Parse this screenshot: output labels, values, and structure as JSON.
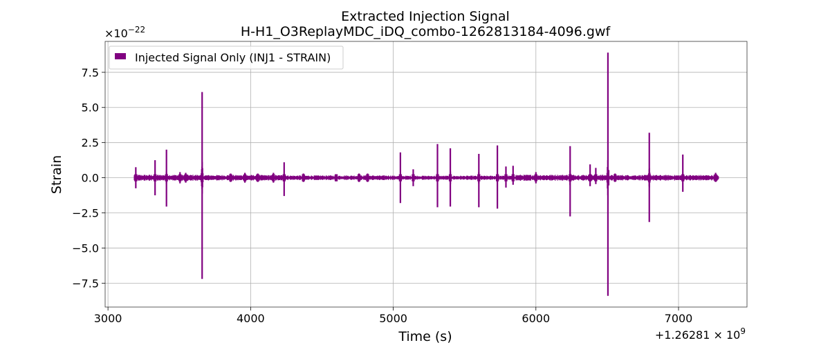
{
  "chart_data": {
    "type": "line",
    "title_line1": "Extracted Injection Signal",
    "title_line2": "H-H1_O3ReplayMDC_iDQ_combo-1262813184-4096.gwf",
    "xlabel": "Time (s)",
    "ylabel": "Strain",
    "x_offset_base": "+1.26281",
    "x_offset_exp": "9",
    "y_scale_base": "×10",
    "y_scale_exp": "−22",
    "xlim": [
      2980,
      7480
    ],
    "ylim": [
      -9.2,
      9.7
    ],
    "xticks": [
      3000,
      4000,
      5000,
      6000,
      7000
    ],
    "xtick_labels": [
      "3000",
      "4000",
      "5000",
      "6000",
      "7000"
    ],
    "yticks": [
      -7.5,
      -5.0,
      -2.5,
      0.0,
      2.5,
      5.0,
      7.5
    ],
    "ytick_labels": [
      "−7.5",
      "−5.0",
      "−2.5",
      "0.0",
      "2.5",
      "5.0",
      "7.5"
    ],
    "grid": true,
    "legend_position": "top-left",
    "series": [
      {
        "name": "Injected Signal Only (INJ1 - STRAIN)",
        "color": "#800080",
        "x_range": [
          3184,
          7280
        ],
        "baseline_amplitude": 0.18,
        "baseline_segments": [
          {
            "x": [
              3184,
              3640
            ],
            "amp": 0.22
          },
          {
            "x": [
              3640,
              4250
            ],
            "amp": 0.2
          },
          {
            "x": [
              4250,
              5000
            ],
            "amp": 0.17
          },
          {
            "x": [
              5000,
              5860
            ],
            "amp": 0.15
          },
          {
            "x": [
              5860,
              6500
            ],
            "amp": 0.22
          },
          {
            "x": [
              6500,
              7280
            ],
            "amp": 0.2
          }
        ],
        "spikes": [
          {
            "x": 3195,
            "max": 0.75,
            "min": -0.75
          },
          {
            "x": 3330,
            "max": 1.25,
            "min": -1.25
          },
          {
            "x": 3410,
            "max": 2.0,
            "min": -2.05
          },
          {
            "x": 3505,
            "max": 0.4,
            "min": -0.4
          },
          {
            "x": 3545,
            "max": 0.35,
            "min": -0.35
          },
          {
            "x": 3660,
            "max": 6.1,
            "min": -7.2
          },
          {
            "x": 3860,
            "max": 0.3,
            "min": -0.3
          },
          {
            "x": 3960,
            "max": 0.35,
            "min": -0.35
          },
          {
            "x": 4050,
            "max": 0.3,
            "min": -0.3
          },
          {
            "x": 4160,
            "max": 0.35,
            "min": -0.35
          },
          {
            "x": 4235,
            "max": 1.1,
            "min": -1.3
          },
          {
            "x": 4370,
            "max": 0.3,
            "min": -0.3
          },
          {
            "x": 4600,
            "max": 0.25,
            "min": -0.25
          },
          {
            "x": 4760,
            "max": 0.3,
            "min": -0.3
          },
          {
            "x": 4820,
            "max": 0.3,
            "min": -0.3
          },
          {
            "x": 5050,
            "max": 1.8,
            "min": -1.8
          },
          {
            "x": 5140,
            "max": 0.6,
            "min": -0.6
          },
          {
            "x": 5310,
            "max": 2.4,
            "min": -2.1
          },
          {
            "x": 5400,
            "max": 2.1,
            "min": -2.05
          },
          {
            "x": 5600,
            "max": 1.7,
            "min": -2.1
          },
          {
            "x": 5730,
            "max": 2.3,
            "min": -2.2
          },
          {
            "x": 5790,
            "max": 0.8,
            "min": -0.7
          },
          {
            "x": 5840,
            "max": 0.85,
            "min": -0.5
          },
          {
            "x": 6000,
            "max": 0.4,
            "min": -0.4
          },
          {
            "x": 6240,
            "max": 2.25,
            "min": -2.75
          },
          {
            "x": 6380,
            "max": 0.95,
            "min": -0.6
          },
          {
            "x": 6420,
            "max": 0.7,
            "min": -0.45
          },
          {
            "x": 6505,
            "max": 8.9,
            "min": -8.4
          },
          {
            "x": 6555,
            "max": 0.3,
            "min": -0.3
          },
          {
            "x": 6795,
            "max": 3.2,
            "min": -3.15
          },
          {
            "x": 7030,
            "max": 1.65,
            "min": -1.0
          },
          {
            "x": 7260,
            "max": 0.35,
            "min": -0.3
          }
        ]
      }
    ]
  }
}
